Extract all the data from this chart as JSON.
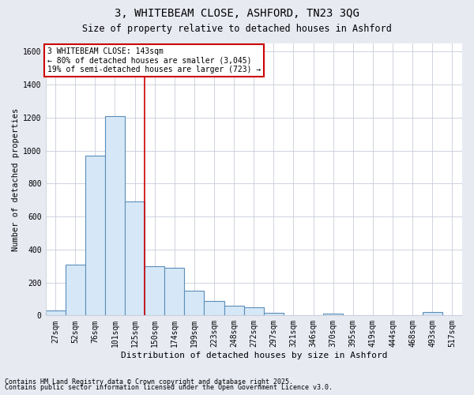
{
  "title_line1": "3, WHITEBEAM CLOSE, ASHFORD, TN23 3QG",
  "title_line2": "Size of property relative to detached houses in Ashford",
  "xlabel": "Distribution of detached houses by size in Ashford",
  "ylabel": "Number of detached properties",
  "footnote1": "Contains HM Land Registry data © Crown copyright and database right 2025.",
  "footnote2": "Contains public sector information licensed under the Open Government Licence v3.0.",
  "categories": [
    "27sqm",
    "52sqm",
    "76sqm",
    "101sqm",
    "125sqm",
    "150sqm",
    "174sqm",
    "199sqm",
    "223sqm",
    "248sqm",
    "272sqm",
    "297sqm",
    "321sqm",
    "346sqm",
    "370sqm",
    "395sqm",
    "419sqm",
    "444sqm",
    "468sqm",
    "493sqm",
    "517sqm"
  ],
  "values": [
    30,
    310,
    970,
    1210,
    690,
    300,
    290,
    150,
    90,
    60,
    50,
    15,
    0,
    0,
    10,
    0,
    0,
    0,
    0,
    20,
    0
  ],
  "bar_color": "#d6e8f7",
  "bar_edge_color": "#5b8db8",
  "grid_color": "#c8ccd8",
  "vline_color": "#cc0000",
  "annotation_text": "3 WHITEBEAM CLOSE: 143sqm\n← 80% of detached houses are smaller (3,045)\n19% of semi-detached houses are larger (723) →",
  "annotation_box_color": "#cc0000",
  "ylim": [
    0,
    1650
  ],
  "yticks": [
    0,
    200,
    400,
    600,
    800,
    1000,
    1200,
    1400,
    1600
  ],
  "background_color": "#e8eaf2",
  "plot_bg_color": "#ffffff",
  "title_fontsize": 10,
  "subtitle_fontsize": 8.5,
  "xlabel_fontsize": 8,
  "ylabel_fontsize": 7.5,
  "tick_fontsize": 7,
  "annot_fontsize": 7,
  "footnote_fontsize": 6
}
